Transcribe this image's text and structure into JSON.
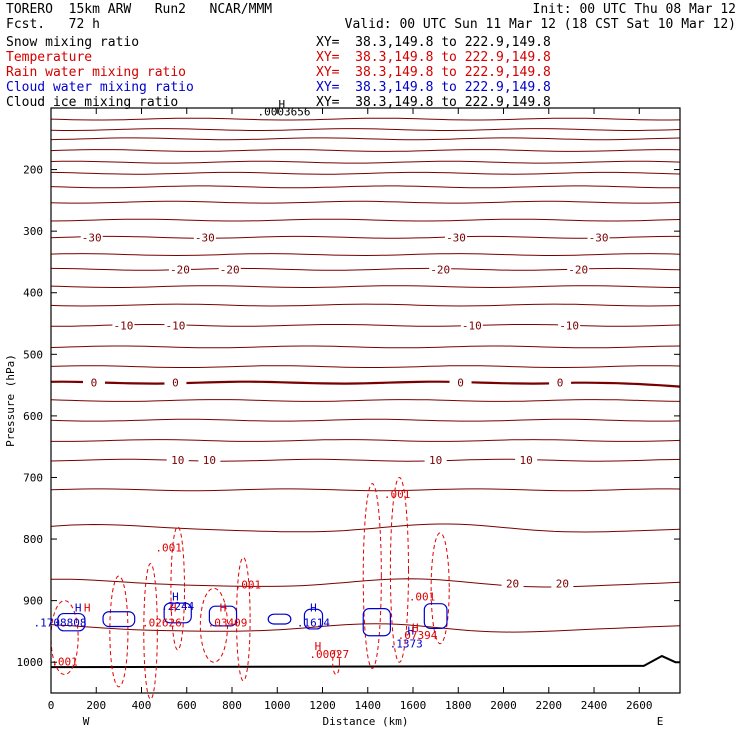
{
  "header": {
    "model": "TORERO  15km ARW   Run2   NCAR/MMM",
    "init": "Init: 00 UTC Thu 08 Mar 12",
    "fcst": "Fcst.   72 h",
    "valid": "Valid: 00 UTC Sun 11 Mar 12 (18 CST Sat 10 Mar 12)"
  },
  "fields": [
    {
      "name": "Snow mixing ratio",
      "range": "XY=  38.3,149.8 to 222.9,149.8",
      "color": "#000000"
    },
    {
      "name": "Temperature",
      "range": "XY=  38.3,149.8 to 222.9,149.8",
      "color": "#d40000"
    },
    {
      "name": "Rain water mixing ratio",
      "range": "XY=  38.3,149.8 to 222.9,149.8",
      "color": "#d40000"
    },
    {
      "name": "Cloud water mixing ratio",
      "range": "XY=  38.3,149.8 to 222.9,149.8",
      "color": "#0000cc"
    },
    {
      "name": "Cloud ice mixing ratio",
      "range": "XY=  38.3,149.8 to 222.9,149.8",
      "color": "#000000"
    }
  ],
  "colors": {
    "temperature": "#7a0000",
    "freezing": "#7a0000",
    "rain": "#e00000",
    "cloud": "#0000cc",
    "frame": "#000000"
  },
  "chart_data": {
    "type": "contour-cross-section",
    "xlabel": "Distance (km)",
    "ylabel": "Pressure (hPa)",
    "xlim": [
      0,
      2780
    ],
    "ylim": [
      1050,
      100
    ],
    "x_ticks": [
      0,
      200,
      400,
      600,
      800,
      1000,
      1200,
      1400,
      1600,
      1800,
      2000,
      2200,
      2400,
      2600
    ],
    "y_ticks": [
      200,
      300,
      400,
      500,
      600,
      700,
      800,
      900,
      1000
    ],
    "x_ends": {
      "left": "W",
      "right": "E"
    },
    "temperature_isotherms": [
      {
        "p": 118
      },
      {
        "p": 135
      },
      {
        "p": 150
      },
      {
        "p": 169
      },
      {
        "p": 188
      },
      {
        "p": 206
      },
      {
        "p": 228
      },
      {
        "p": 253
      },
      {
        "p": 282
      },
      {
        "p": 310,
        "label": "-30",
        "label_x": [
          180,
          680,
          1790,
          2420
        ]
      },
      {
        "p": 338
      },
      {
        "p": 362,
        "label": "-20",
        "label_x": [
          570,
          790,
          1720,
          2330
        ]
      },
      {
        "p": 390
      },
      {
        "p": 420
      },
      {
        "p": 453,
        "label": "-10",
        "label_x": [
          320,
          550,
          1860,
          2290
        ]
      },
      {
        "p": 488
      },
      {
        "p": 520
      },
      {
        "p": 546,
        "label": "0",
        "label_x": [
          190,
          550,
          1810,
          2250
        ],
        "freezing": true
      },
      {
        "p": 575
      },
      {
        "p": 607
      },
      {
        "p": 640
      },
      {
        "p": 672,
        "label": "10",
        "label_x": [
          560,
          700,
          1700,
          2100
        ]
      },
      {
        "p": 720
      },
      {
        "p": 783
      },
      {
        "p": 872,
        "label": "20",
        "label_x": [
          2040,
          2260
        ]
      },
      {
        "p": 945
      }
    ],
    "rain_labels": [
      {
        "x": 520,
        "p": 820,
        "text": ".001"
      },
      {
        "x": 870,
        "p": 880,
        "text": ".001"
      },
      {
        "x": 1530,
        "p": 733,
        "text": ".001"
      },
      {
        "x": 1640,
        "p": 900,
        "text": ".001"
      },
      {
        "x": 60,
        "p": 1005,
        "text": ".001"
      },
      {
        "x": 1230,
        "p": 993,
        "text": ".00027"
      },
      {
        "x": 780,
        "p": 942,
        "text": ".03409"
      },
      {
        "x": 490,
        "p": 942,
        "text": ".02626"
      },
      {
        "x": 1620,
        "p": 962,
        "text": ".07394"
      }
    ],
    "cloud_labels": [
      {
        "x": 560,
        "p": 915,
        "text": ".2244"
      },
      {
        "x": 1160,
        "p": 942,
        "text": ".1614"
      },
      {
        "x": 1570,
        "p": 976,
        "text": ".1373"
      },
      {
        "x": 40,
        "p": 942,
        "text": ".1708808"
      }
    ],
    "snow_label": {
      "x": 1030,
      "p": 112,
      "text": ".0003656"
    },
    "high_markers": [
      {
        "x": 120,
        "p": 918,
        "color": "blue"
      },
      {
        "x": 160,
        "p": 918,
        "color": "red"
      },
      {
        "x": 540,
        "p": 918,
        "color": "red"
      },
      {
        "x": 550,
        "p": 900,
        "color": "blue"
      },
      {
        "x": 760,
        "p": 918,
        "color": "red"
      },
      {
        "x": 1160,
        "p": 918,
        "color": "blue"
      },
      {
        "x": 1180,
        "p": 980,
        "color": "red"
      },
      {
        "x": 1590,
        "p": 955,
        "color": "blue"
      },
      {
        "x": 1610,
        "p": 950,
        "color": "red"
      },
      {
        "x": 1020,
        "p": 100,
        "color": "black"
      }
    ]
  }
}
